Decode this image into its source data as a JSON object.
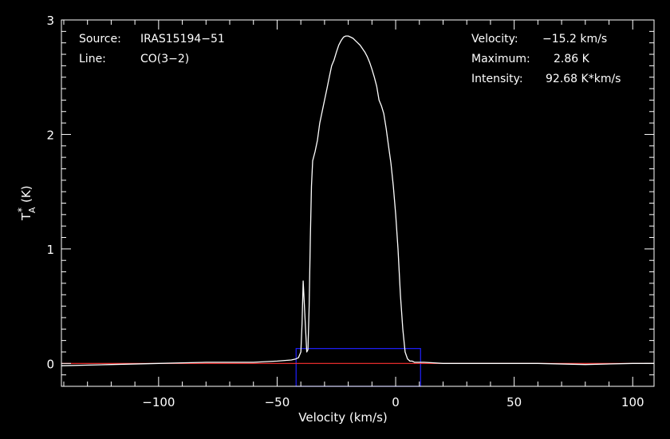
{
  "chart_data": {
    "type": "line",
    "xlabel": "Velocity (km/s)",
    "ylabel_main": "T",
    "ylabel_sup": "*",
    "ylabel_sub": "A",
    "ylabel_unit": "(K)",
    "xlim": [
      -141,
      109
    ],
    "ylim": [
      -0.2,
      3.0
    ],
    "x_ticks": [
      -100,
      -50,
      0,
      50,
      100
    ],
    "x_tick_labels": [
      "−100",
      "−50",
      "0",
      "50",
      "100"
    ],
    "y_ticks": [
      0,
      1,
      2,
      3
    ],
    "y_tick_labels": [
      "0",
      "1",
      "2",
      "3"
    ],
    "baseline": 0,
    "window": {
      "x0": -42,
      "x1": 10.5,
      "y0": -0.2,
      "y1": 0.13
    },
    "series": [
      {
        "x": [
          -141,
          -120,
          -100,
          -80,
          -60,
          -50,
          -44,
          -42,
          -41,
          -40,
          -39.5,
          -39,
          -38,
          -37.5,
          -37,
          -36.5,
          -36,
          -35.5,
          -35,
          -34,
          -33,
          -32,
          -31,
          -30,
          -29,
          -28,
          -27,
          -26,
          -25,
          -24,
          -23,
          -22,
          -21,
          -20,
          -19,
          -18,
          -17,
          -16,
          -15,
          -14,
          -13,
          -12,
          -11,
          -10,
          -9,
          -8,
          -7,
          -6,
          -5,
          -4,
          -3,
          -2,
          -1,
          0,
          1,
          2,
          3,
          4,
          5,
          6,
          7,
          8,
          9,
          10,
          12,
          20,
          40,
          60,
          80,
          100,
          109
        ],
        "y": [
          -0.02,
          -0.01,
          0.0,
          0.01,
          0.01,
          0.02,
          0.03,
          0.04,
          0.05,
          0.1,
          0.35,
          0.72,
          0.3,
          0.1,
          0.12,
          0.5,
          1.1,
          1.55,
          1.77,
          1.85,
          1.95,
          2.1,
          2.2,
          2.3,
          2.4,
          2.5,
          2.6,
          2.65,
          2.72,
          2.78,
          2.82,
          2.85,
          2.86,
          2.86,
          2.85,
          2.84,
          2.82,
          2.8,
          2.78,
          2.75,
          2.72,
          2.68,
          2.63,
          2.57,
          2.5,
          2.42,
          2.3,
          2.25,
          2.18,
          2.05,
          1.9,
          1.75,
          1.55,
          1.3,
          1.0,
          0.6,
          0.3,
          0.1,
          0.04,
          0.02,
          0.02,
          0.01,
          0.01,
          0.01,
          0.01,
          0.0,
          0.0,
          0.0,
          -0.01,
          0.0,
          0.0
        ]
      }
    ]
  },
  "info": {
    "source_label": "Source:",
    "source_value": "IRAS15194−51",
    "line_label": "Line:",
    "line_value": "CO(3−2)",
    "velocity_label": "Velocity:",
    "velocity_value": "−15.2 km/s",
    "maximum_label": "Maximum:",
    "maximum_value": "2.86 K",
    "intensity_label": "Intensity:",
    "intensity_value": "92.68 K*km/s"
  },
  "colors": {
    "spectrum": "#ffffff",
    "baseline": "#ff3030",
    "window": "#2020ff",
    "axes": "#ffffff"
  }
}
